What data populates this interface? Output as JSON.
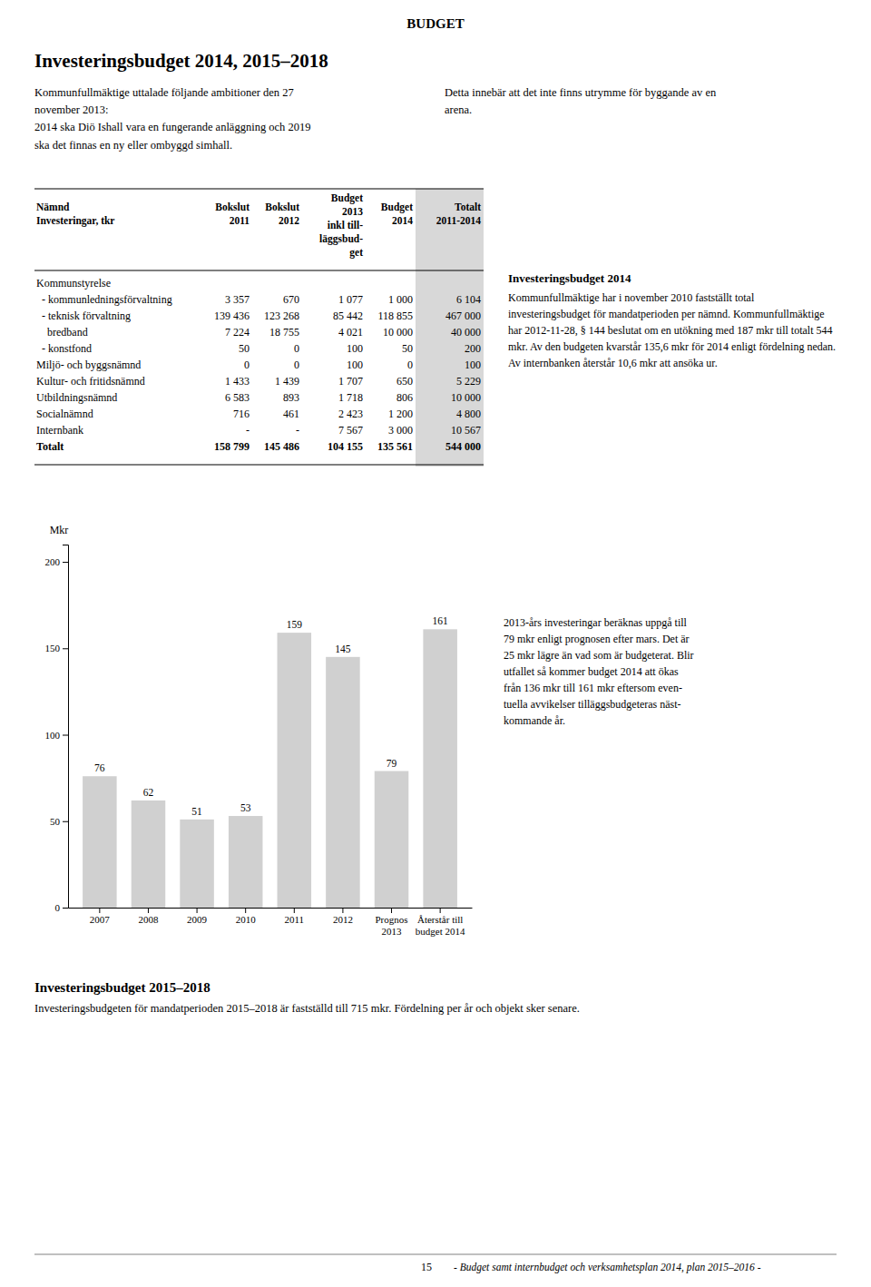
{
  "page": {
    "title": "BUDGET",
    "section1_title": "Investeringsbudget 2014, 2015–2018",
    "section1_text_left": "Kommunfullmäktige uttalade följande ambitioner den 27\nnovember 2013:\n2014 ska Diö Ishall vara en fungerande anläggning och 2019\nska det finnas en ny eller ombyggd simhall.",
    "section1_text_right": "Detta innebär att det inte finns utrymme för byggande av en\narena.",
    "table": {
      "headers": [
        "Nämnd\nInvesteringar, tkr",
        "Bokslut\n2011",
        "Bokslut\n2012",
        "Budget\n2013\ninkl till-\nläggsbud-\nget",
        "Budget\n2014",
        "Totalt\n2011-2014"
      ],
      "rows": [
        [
          "Kommunstyrelse",
          null,
          null,
          null,
          null,
          null
        ],
        [
          "  - kommunledningsförvaltning",
          "3 357",
          "670",
          "1 077",
          "1 000",
          "6 104"
        ],
        [
          "  - teknisk förvaltning",
          "139 436",
          "123 268",
          "85 442",
          "118 855",
          "467 000"
        ],
        [
          "    bredband",
          "7 224",
          "18 755",
          "4 021",
          "10 000",
          "40 000"
        ],
        [
          "  - konstfond",
          "50",
          "0",
          "100",
          "50",
          "200"
        ],
        [
          "Miljö- och byggsnämnd",
          "0",
          "0",
          "100",
          "0",
          "100"
        ],
        [
          "Kultur- och fritidsnämnd",
          "1 433",
          "1 439",
          "1 707",
          "650",
          "5 229"
        ],
        [
          "Utbildningsnämnd",
          "6 583",
          "893",
          "1 718",
          "806",
          "10 000"
        ],
        [
          "Socialnämnd",
          "716",
          "461",
          "2 423",
          "1 200",
          "4 800"
        ],
        [
          "Internbank",
          "-",
          "-",
          "7 567",
          "3 000",
          "10 567"
        ],
        [
          "Totalt",
          "158 799",
          "145 486",
          "104 155",
          "135 561",
          "544 000"
        ]
      ]
    },
    "side_title": "Investeringsbudget 2014",
    "side_text": "Kommunfullmäktige har i november 2010 fastställt total investeringsbudget för mandatperioden per nämnd. Kommunfullmäktige har 2012-11-28, § 144 beslutat om en utökning med 187 mkr till totalt 544 mkr. Av den budgeten kvarstår 135,6 mkr för 2014 enligt fördelning nedan. Av internbanken återstår 10,6 mkr att ansöka ur.",
    "chart_side_text": "2013-års investeringar beräknas uppgå till\n79 mkr enligt prognosen efter mars. Det är\n25 mkr lägre än vad som är budgeterat. Blir\nutfallet så kommer budget 2014 att ökas\nfrån 136 mkr till 161 mkr eftersom even-\ntuella avvikelser tilläggsbudgeteras näst-\nkommande år.",
    "section2_title": "Investeringsbudget 2015–2018",
    "section2_text": "Investeringsbudgeten för mandatperioden 2015–2018 är fastställd till 715 mkr. Fördelning per år och objekt sker senare.",
    "footer_page": "15",
    "footer_text": "- Budget samt internbudget och verksamhetsplan 2014, plan 2015–2016 -"
  },
  "chart_data": {
    "type": "bar",
    "categories": [
      "2007",
      "2008",
      "2009",
      "2010",
      "2011",
      "2012",
      "Prognos\n2013",
      "Återstår till\nbudget 2014"
    ],
    "values": [
      76,
      62,
      51,
      53,
      159,
      145,
      79,
      161
    ],
    "color": "#d0d0d0",
    "ylabel": "Mkr",
    "ylim": [
      0,
      210
    ],
    "yticks": [
      0,
      50,
      100,
      150,
      200
    ],
    "data_labels": true,
    "grid": false
  }
}
